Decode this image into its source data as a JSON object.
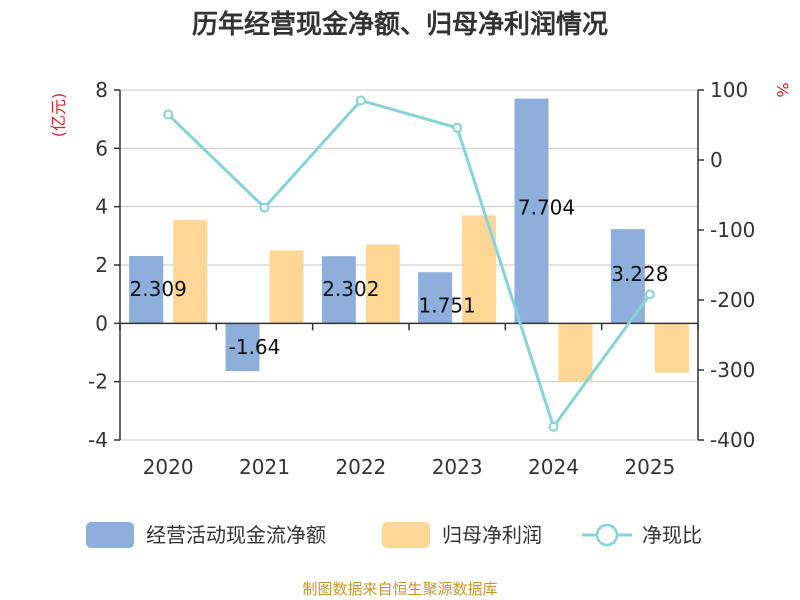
{
  "chart_data": {
    "type": "bar",
    "title": "历年经营现金净额、归母净利润情况",
    "categories": [
      "2020",
      "2021",
      "2022",
      "2023",
      "2024",
      "2025"
    ],
    "y_left": {
      "unit": "(亿元)",
      "range": [
        -4,
        8
      ],
      "ticks": [
        "8",
        "6",
        "4",
        "2",
        "0",
        "-2",
        "-4"
      ]
    },
    "y_right": {
      "unit": "%",
      "range": [
        -400,
        100
      ],
      "ticks": [
        "100",
        "0",
        "-100",
        "-200",
        "-300",
        "-400"
      ]
    },
    "series": [
      {
        "name": "经营活动现金流净额",
        "type": "bar",
        "axis": "left",
        "color": "#8eaedc",
        "values": [
          2.309,
          -1.64,
          2.302,
          1.751,
          7.704,
          3.228
        ],
        "labels": [
          "2.309",
          "-1.64",
          "2.302",
          "1.751",
          "7.704",
          "3.228"
        ]
      },
      {
        "name": "归母净利润",
        "type": "bar",
        "axis": "left",
        "color": "#fed797",
        "values": [
          3.55,
          2.5,
          2.7,
          3.7,
          -2.0,
          -1.7
        ]
      },
      {
        "name": "净现比",
        "type": "line",
        "axis": "right",
        "color": "#86d3d8",
        "values": [
          65,
          -68,
          85,
          46,
          -381,
          -192
        ]
      }
    ],
    "grid": true,
    "legend": "bottom"
  },
  "source": "制图数据来自恒生聚源数据库"
}
